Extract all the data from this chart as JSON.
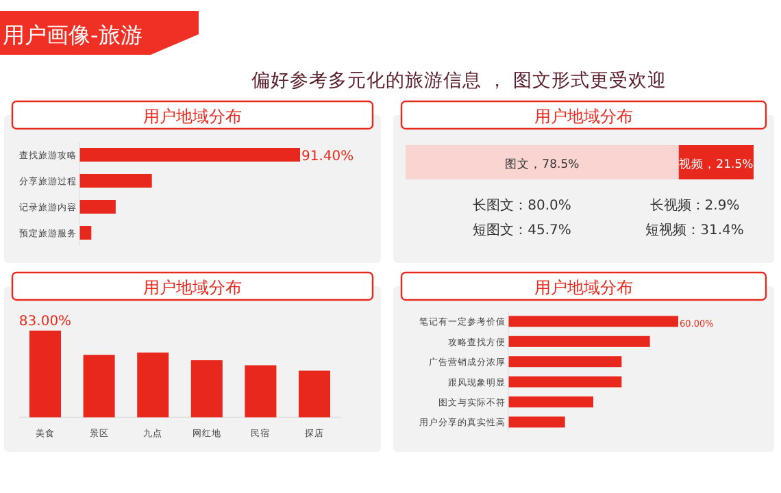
{
  "chart_data": [
    {
      "type": "other",
      "title": "用户画像-旅游",
      "subtitle": "偏好参考多元化的旅游信息 ， 图文形式更受欢迎"
    },
    {
      "type": "bar",
      "orientation": "horizontal",
      "title": "用户地域分布",
      "categories": [
        "查找旅游攻略",
        "分享旅游过程",
        "记录旅游内容",
        "预定旅游服务"
      ],
      "values": [
        91.4,
        30.0,
        15.0,
        4.9
      ],
      "value_labels": [
        "91.40%",
        null,
        null,
        null
      ],
      "color": "#e8281c"
    },
    {
      "type": "bar",
      "orientation": "horizontal",
      "stacked": true,
      "title": "用户地域分布",
      "categories": [
        null
      ],
      "series": [
        {
          "color": "#f9d4d1",
          "values": [
            78.5
          ],
          "value_labels": [
            "图文，78.5%"
          ]
        },
        {
          "color": "#e8281c",
          "values": [
            21.5
          ],
          "value_labels": [
            "视频，21.5%"
          ]
        }
      ],
      "annotations": [
        "长图文：80.0%",
        "长视频：2.9%",
        "短图文：45.7%",
        "短视频：31.4%"
      ]
    },
    {
      "type": "bar",
      "title": "用户地域分布",
      "categories": [
        "美食",
        "景区",
        "九点",
        "网红地",
        "民宿",
        "探店"
      ],
      "values": [
        83.0,
        59.8,
        62.0,
        54.6,
        49.8,
        44.6
      ],
      "value_labels": [
        "83.00%",
        null,
        null,
        null,
        null,
        null
      ],
      "color": "#e8281c"
    },
    {
      "type": "bar",
      "orientation": "horizontal",
      "title": "用户地域分布",
      "categories": [
        "笔记有一定参考价值",
        "攻略查找方便",
        "广告营销成分浓厚",
        "跟风现象明显",
        "图文与实际不符",
        "用户分享的真实性高"
      ],
      "values": [
        60.0,
        50.0,
        40.0,
        40.0,
        30.0,
        20.0
      ],
      "value_labels": [
        "60.00%",
        null,
        null,
        null,
        null,
        null
      ],
      "color": "#e8281c"
    }
  ]
}
